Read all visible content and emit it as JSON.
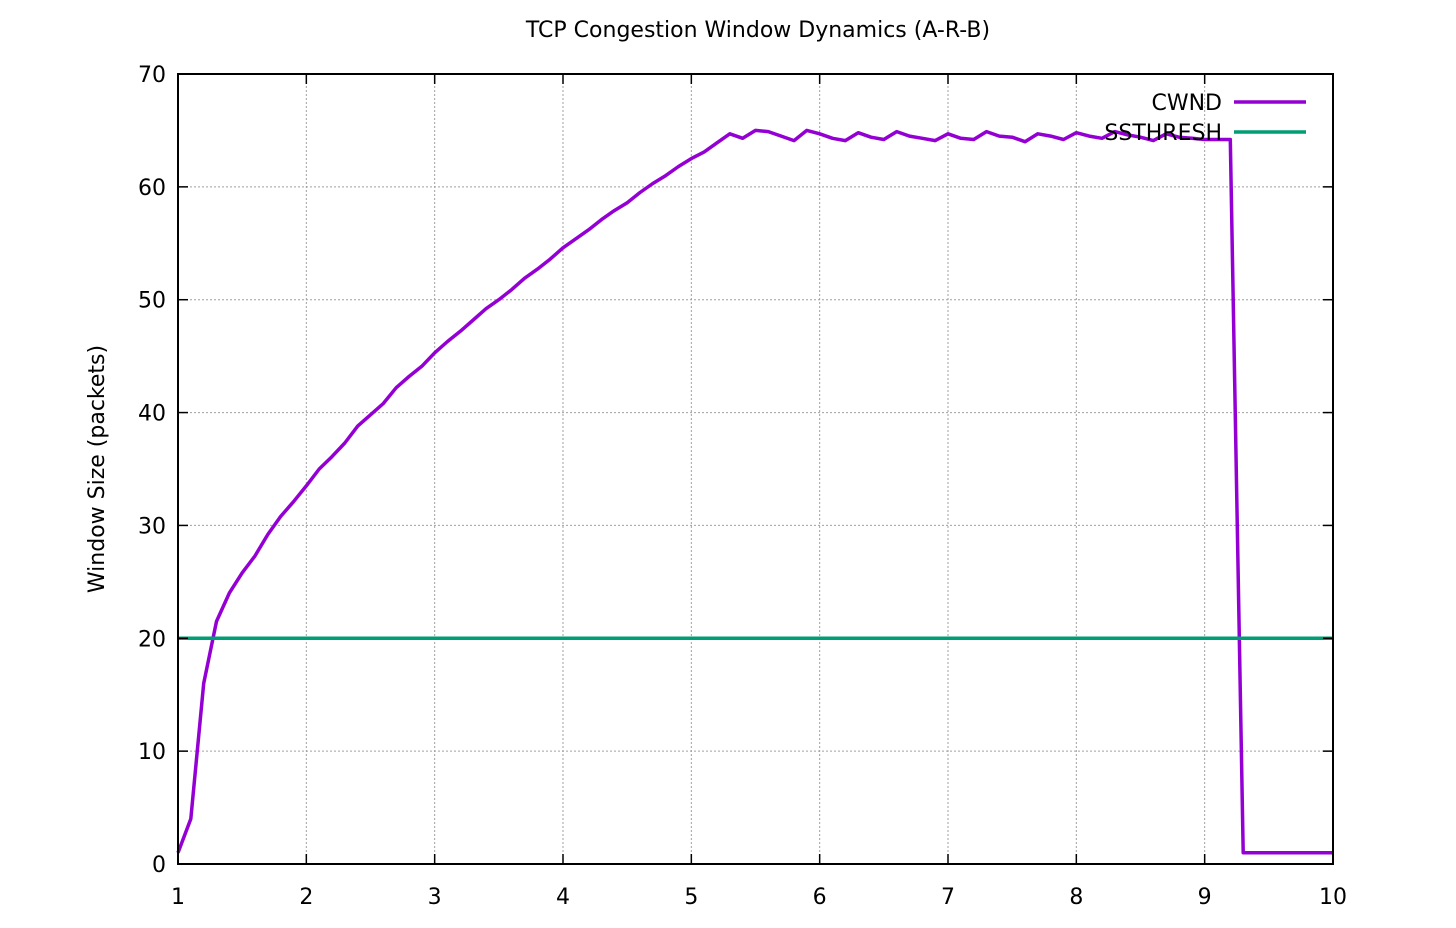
{
  "chart_data": {
    "type": "line",
    "title": "TCP Congestion Window Dynamics (A-R-B)",
    "xlabel": "",
    "ylabel": "Window Size (packets)",
    "xlim": [
      1,
      10
    ],
    "ylim": [
      0,
      70
    ],
    "xticks": [
      1,
      2,
      3,
      4,
      5,
      6,
      7,
      8,
      9,
      10
    ],
    "yticks": [
      0,
      10,
      20,
      30,
      40,
      50,
      60,
      70
    ],
    "grid": true,
    "legend_position": "top-right",
    "series": [
      {
        "name": "CWND",
        "color": "#9400d3",
        "x": [
          1.0,
          1.1,
          1.2,
          1.3,
          1.4,
          1.5,
          1.6,
          1.7,
          1.8,
          1.9,
          2.0,
          2.1,
          2.2,
          2.3,
          2.4,
          2.5,
          2.6,
          2.7,
          2.8,
          2.9,
          3.0,
          3.1,
          3.2,
          3.3,
          3.4,
          3.5,
          3.6,
          3.7,
          3.8,
          3.9,
          4.0,
          4.1,
          4.2,
          4.3,
          4.4,
          4.5,
          4.6,
          4.7,
          4.8,
          4.9,
          5.0,
          5.1,
          5.2,
          5.3,
          5.4,
          5.5,
          5.6,
          5.7,
          5.8,
          5.9,
          6.0,
          6.1,
          6.2,
          6.3,
          6.4,
          6.5,
          6.6,
          6.7,
          6.8,
          6.9,
          7.0,
          7.1,
          7.2,
          7.3,
          7.4,
          7.5,
          7.6,
          7.7,
          7.8,
          7.9,
          8.0,
          8.1,
          8.2,
          8.3,
          8.4,
          8.5,
          8.6,
          8.7,
          8.8,
          8.9,
          9.0,
          9.1,
          9.2,
          9.3,
          9.4,
          9.5,
          9.6,
          9.7,
          9.8,
          9.9,
          10.0
        ],
        "y": [
          1,
          4,
          16,
          21.5,
          24,
          25.8,
          27.3,
          29.2,
          30.8,
          32.1,
          33.5,
          35,
          36.1,
          37.3,
          38.8,
          39.8,
          40.8,
          42.2,
          43.2,
          44.1,
          45.3,
          46.3,
          47.2,
          48.2,
          49.2,
          50,
          50.9,
          51.9,
          52.7,
          53.6,
          54.6,
          55.4,
          56.2,
          57.1,
          57.9,
          58.6,
          59.5,
          60.3,
          61,
          61.8,
          62.5,
          63.1,
          63.9,
          64.7,
          64.3,
          65,
          64.9,
          64.5,
          64.1,
          65,
          64.7,
          64.3,
          64.1,
          64.8,
          64.4,
          64.2,
          64.9,
          64.5,
          64.3,
          64.1,
          64.7,
          64.3,
          64.2,
          64.9,
          64.5,
          64.4,
          64,
          64.7,
          64.5,
          64.2,
          64.8,
          64.5,
          64.3,
          64.9,
          64.6,
          64.4,
          64.1,
          64.7,
          64.4,
          64.3,
          64.2,
          64.2,
          64.2,
          1,
          1,
          1,
          1,
          1,
          1,
          1,
          1
        ]
      },
      {
        "name": "SSTHRESH",
        "color": "#009e73",
        "x": [
          1,
          10
        ],
        "y": [
          20,
          20
        ]
      }
    ]
  }
}
